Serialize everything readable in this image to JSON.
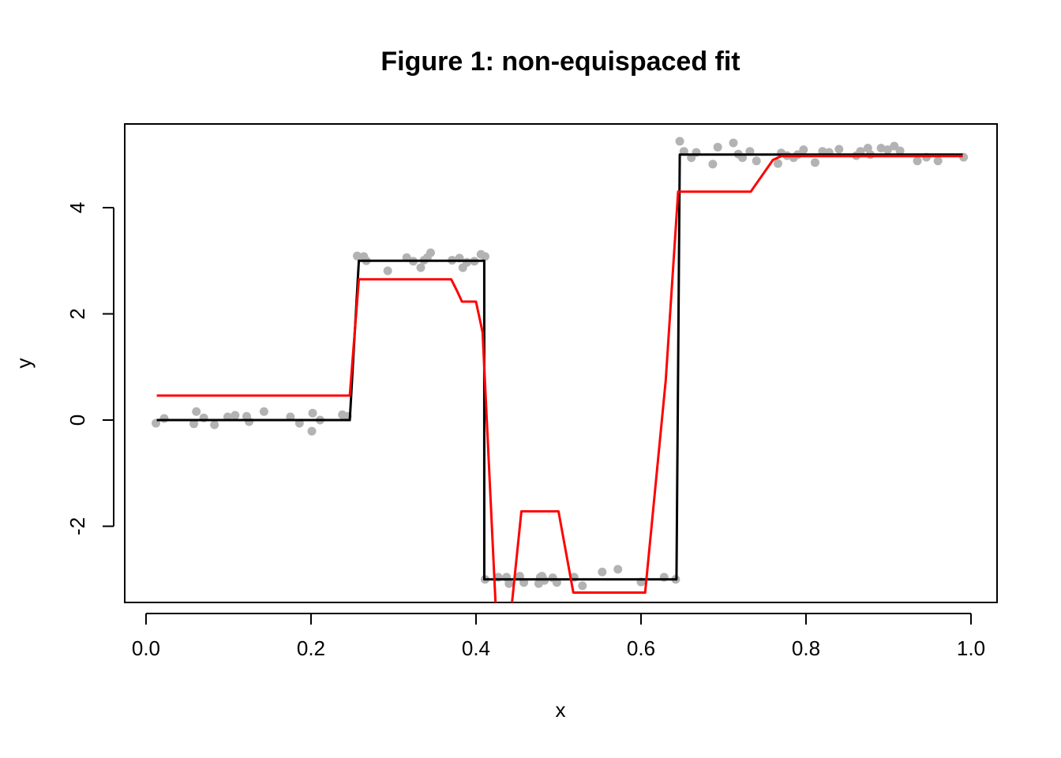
{
  "chart_data": {
    "type": "line",
    "title": "Figure 1: non-equispaced fit",
    "xlabel": "x",
    "ylabel": "y",
    "xlim": [
      -0.0258,
      1.0316
    ],
    "ylim": [
      -3.435,
      5.576
    ],
    "xticks": [
      {
        "value": 0,
        "label": "0.0"
      },
      0.2,
      0.4,
      0.6,
      0.8,
      {
        "value": 1,
        "label": "1.0"
      }
    ],
    "yticks": [
      -2,
      0,
      2,
      4
    ],
    "series": [
      {
        "type": "scatter",
        "color": "#b3b3b3",
        "x": [
          0.012,
          0.022,
          0.058,
          0.061,
          0.07,
          0.083,
          0.099,
          0.108,
          0.122,
          0.125,
          0.143,
          0.175,
          0.186,
          0.201,
          0.202,
          0.211,
          0.238,
          0.244,
          0.256,
          0.264,
          0.267,
          0.293,
          0.316,
          0.324,
          0.333,
          0.337,
          0.341,
          0.345,
          0.371,
          0.38,
          0.384,
          0.389,
          0.398,
          0.406,
          0.411,
          0.411,
          0.427,
          0.437,
          0.44,
          0.453,
          0.458,
          0.476,
          0.478,
          0.48,
          0.483,
          0.493,
          0.498,
          0.519,
          0.529,
          0.553,
          0.572,
          0.6,
          0.628,
          0.642,
          0.647,
          0.652,
          0.661,
          0.667,
          0.687,
          0.693,
          0.712,
          0.718,
          0.723,
          0.732,
          0.74,
          0.766,
          0.77,
          0.777,
          0.785,
          0.79,
          0.797,
          0.811,
          0.82,
          0.828,
          0.84,
          0.861,
          0.866,
          0.875,
          0.878,
          0.891,
          0.899,
          0.907,
          0.914,
          0.935,
          0.946,
          0.96,
          0.991
        ],
        "values": [
          -0.06,
          0.03,
          -0.07,
          0.16,
          0.04,
          -0.09,
          0.06,
          0.09,
          0.07,
          -0.03,
          0.16,
          0.06,
          -0.06,
          -0.21,
          0.13,
          0.0,
          0.1,
          0.07,
          3.09,
          3.08,
          3.0,
          2.81,
          3.06,
          2.99,
          2.87,
          3.01,
          3.06,
          3.15,
          3.01,
          3.05,
          2.87,
          2.97,
          2.99,
          3.12,
          3.08,
          -3.0,
          -2.96,
          -2.96,
          -3.08,
          -2.94,
          -3.06,
          -3.08,
          -2.96,
          -2.94,
          -3.02,
          -2.97,
          -3.06,
          -2.96,
          -3.12,
          -2.86,
          -2.81,
          -3.05,
          -2.96,
          -3.0,
          5.25,
          5.06,
          4.94,
          5.04,
          4.82,
          5.14,
          5.22,
          5.01,
          4.94,
          5.06,
          4.88,
          4.83,
          5.03,
          4.98,
          4.94,
          5.0,
          5.09,
          4.85,
          5.06,
          5.04,
          5.1,
          4.98,
          5.06,
          5.12,
          5.0,
          5.12,
          5.09,
          5.16,
          5.07,
          4.88,
          4.95,
          4.88,
          4.95
        ]
      },
      {
        "type": "line",
        "color": "#000000",
        "x": [
          0.013,
          0.247,
          0.258,
          0.41,
          0.41,
          0.643,
          0.647,
          0.99
        ],
        "values": [
          0,
          0,
          3,
          3,
          -3,
          -3,
          5,
          5
        ]
      },
      {
        "type": "line",
        "color": "#ff0000",
        "x": [
          0.013,
          0.247,
          0.258,
          0.37,
          0.378,
          0.383,
          0.4,
          0.408,
          0.43,
          0.455,
          0.5,
          0.518,
          0.605,
          0.63,
          0.645,
          0.733,
          0.76,
          0.77,
          0.99
        ],
        "values": [
          0.46,
          0.46,
          2.65,
          2.65,
          2.4,
          2.23,
          2.23,
          1.65,
          -5.5,
          -1.72,
          -1.72,
          -3.25,
          -3.25,
          0.75,
          4.3,
          4.3,
          4.9,
          4.97,
          4.97
        ]
      }
    ]
  }
}
